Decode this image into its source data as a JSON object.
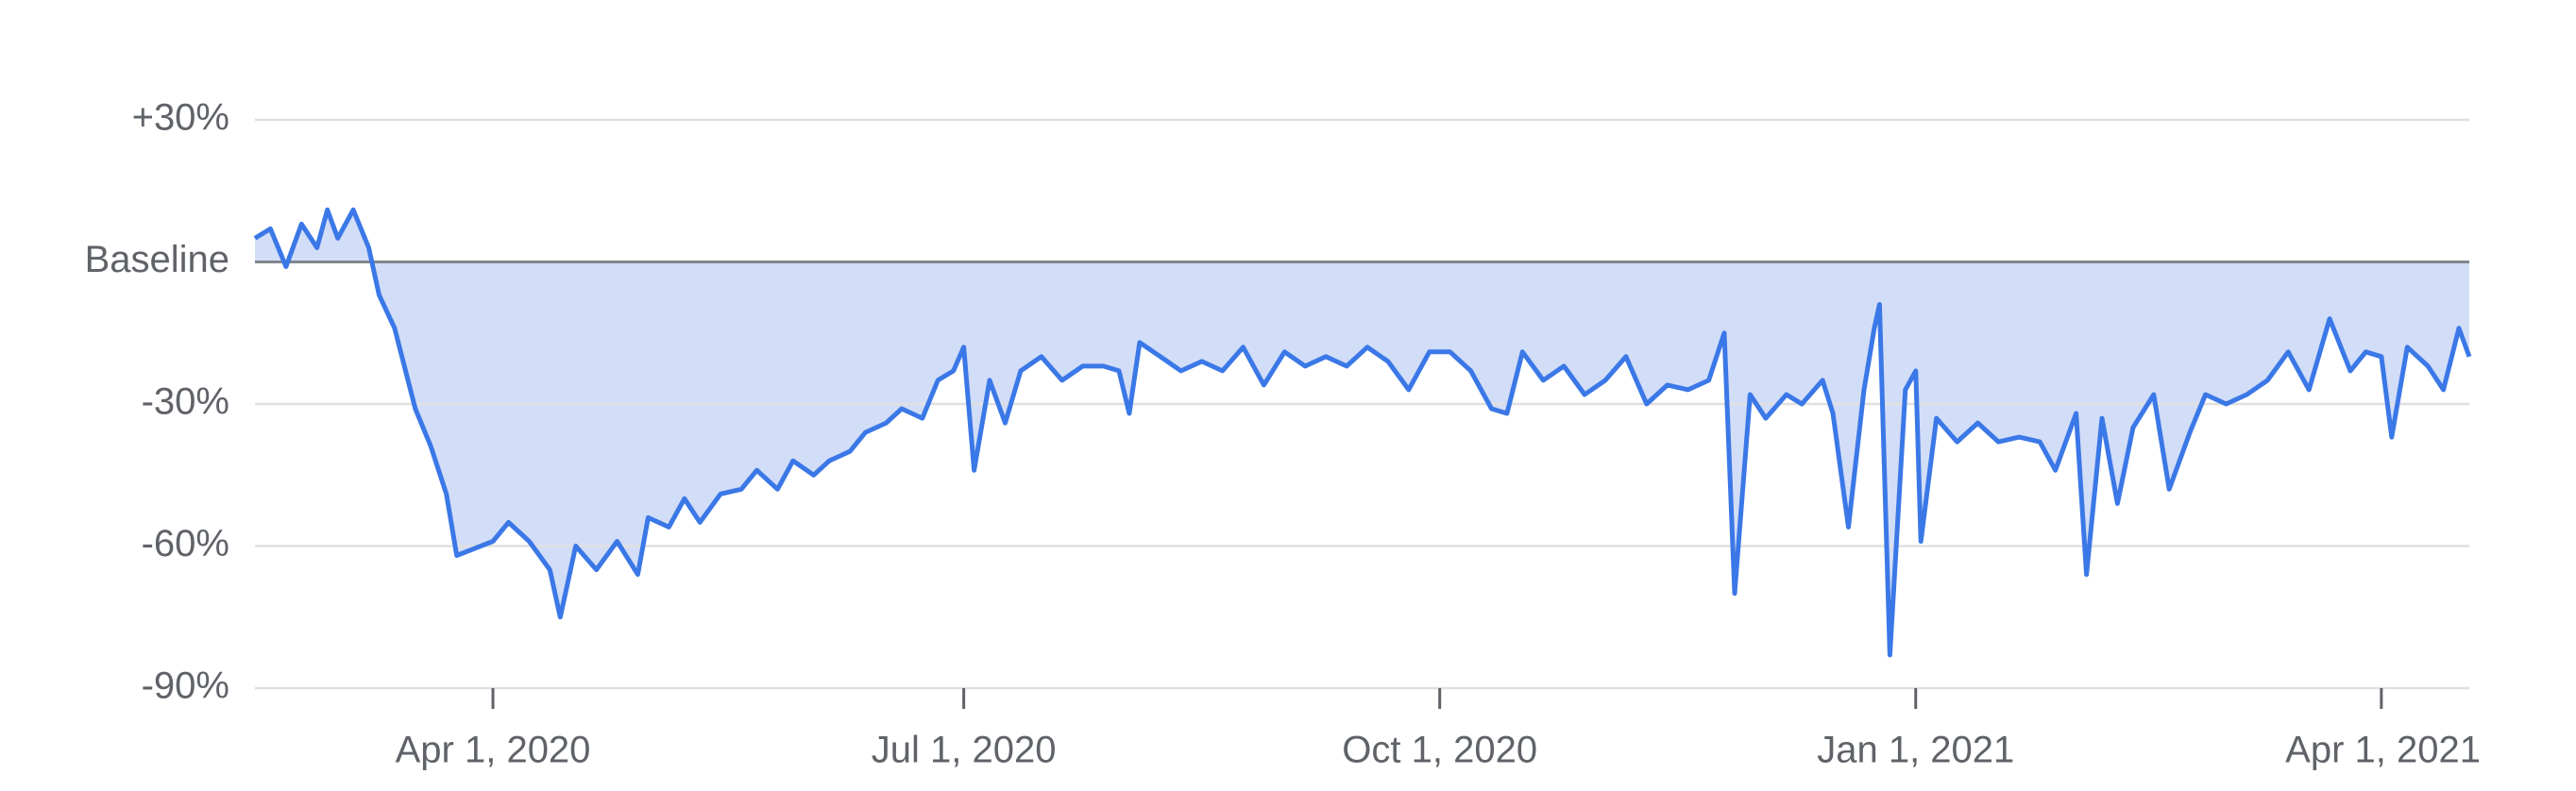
{
  "chart_data": {
    "type": "area",
    "x": [
      "2020-02-15",
      "2020-02-18",
      "2020-02-21",
      "2020-02-24",
      "2020-02-27",
      "2020-02-29",
      "2020-03-02",
      "2020-03-05",
      "2020-03-08",
      "2020-03-10",
      "2020-03-13",
      "2020-03-17",
      "2020-03-20",
      "2020-03-23",
      "2020-03-25",
      "2020-04-01",
      "2020-04-04",
      "2020-04-08",
      "2020-04-12",
      "2020-04-14",
      "2020-04-17",
      "2020-04-21",
      "2020-04-25",
      "2020-04-29",
      "2020-05-01",
      "2020-05-05",
      "2020-05-08",
      "2020-05-11",
      "2020-05-15",
      "2020-05-19",
      "2020-05-22",
      "2020-05-26",
      "2020-05-29",
      "2020-06-02",
      "2020-06-05",
      "2020-06-09",
      "2020-06-12",
      "2020-06-16",
      "2020-06-19",
      "2020-06-23",
      "2020-06-26",
      "2020-06-29",
      "2020-07-01",
      "2020-07-03",
      "2020-07-06",
      "2020-07-09",
      "2020-07-12",
      "2020-07-16",
      "2020-07-20",
      "2020-07-24",
      "2020-07-28",
      "2020-07-31",
      "2020-08-02",
      "2020-08-04",
      "2020-08-08",
      "2020-08-12",
      "2020-08-16",
      "2020-08-20",
      "2020-08-24",
      "2020-08-28",
      "2020-09-01",
      "2020-09-05",
      "2020-09-09",
      "2020-09-13",
      "2020-09-17",
      "2020-09-21",
      "2020-09-25",
      "2020-09-29",
      "2020-10-03",
      "2020-10-07",
      "2020-10-11",
      "2020-10-14",
      "2020-10-17",
      "2020-10-21",
      "2020-10-25",
      "2020-10-29",
      "2020-11-02",
      "2020-11-06",
      "2020-11-10",
      "2020-11-14",
      "2020-11-18",
      "2020-11-22",
      "2020-11-25",
      "2020-11-27",
      "2020-11-30",
      "2020-12-03",
      "2020-12-07",
      "2020-12-10",
      "2020-12-14",
      "2020-12-16",
      "2020-12-19",
      "2020-12-22",
      "2020-12-24",
      "2020-12-25",
      "2020-12-27",
      "2020-12-30",
      "2021-01-01",
      "2021-01-02",
      "2021-01-05",
      "2021-01-09",
      "2021-01-13",
      "2021-01-17",
      "2021-01-21",
      "2021-01-25",
      "2021-01-28",
      "2021-02-01",
      "2021-02-03",
      "2021-02-06",
      "2021-02-09",
      "2021-02-12",
      "2021-02-16",
      "2021-02-19",
      "2021-02-23",
      "2021-02-26",
      "2021-03-02",
      "2021-03-06",
      "2021-03-10",
      "2021-03-14",
      "2021-03-18",
      "2021-03-22",
      "2021-03-26",
      "2021-03-29",
      "2021-04-01",
      "2021-04-03",
      "2021-04-06",
      "2021-04-10",
      "2021-04-13",
      "2021-04-16",
      "2021-04-18"
    ],
    "values": [
      5,
      7,
      -1,
      8,
      3,
      11,
      5,
      11,
      3,
      -7,
      -14,
      -31,
      -39,
      -49,
      -62,
      -59,
      -55,
      -59,
      -65,
      -75,
      -60,
      -65,
      -59,
      -66,
      -54,
      -56,
      -50,
      -55,
      -49,
      -48,
      -44,
      -48,
      -42,
      -45,
      -42,
      -40,
      -36,
      -34,
      -31,
      -33,
      -25,
      -23,
      -18,
      -44,
      -25,
      -34,
      -23,
      -20,
      -25,
      -22,
      -22,
      -23,
      -32,
      -17,
      -20,
      -23,
      -21,
      -23,
      -18,
      -26,
      -19,
      -22,
      -20,
      -22,
      -18,
      -21,
      -27,
      -19,
      -19,
      -23,
      -31,
      -32,
      -19,
      -25,
      -22,
      -28,
      -25,
      -20,
      -30,
      -26,
      -27,
      -25,
      -15,
      -70,
      -28,
      -33,
      -28,
      -30,
      -25,
      -32,
      -56,
      -27,
      -14,
      -9,
      -83,
      -27,
      -23,
      -59,
      -33,
      -38,
      -34,
      -38,
      -37,
      -38,
      -44,
      -32,
      -66,
      -33,
      -51,
      -35,
      -28,
      -48,
      -36,
      -28,
      -30,
      -28,
      -25,
      -19,
      -27,
      -12,
      -23,
      -19,
      -20,
      -37,
      -18,
      -22,
      -27,
      -14,
      -20
    ],
    "color": "#3b78e7",
    "fill_color": "#d2ddf7",
    "xlim": [
      "2020-02-15",
      "2021-04-18"
    ],
    "xticks": [
      {
        "value": "2020-04-01",
        "label": "Apr 1, 2020"
      },
      {
        "value": "2020-07-01",
        "label": "Jul 1, 2020"
      },
      {
        "value": "2020-10-01",
        "label": "Oct 1, 2020"
      },
      {
        "value": "2021-01-01",
        "label": "Jan 1, 2021"
      },
      {
        "value": "2021-04-01",
        "label": "Apr 1, 2021"
      }
    ],
    "ylim": [
      -90,
      30
    ],
    "yticks": [
      {
        "value": 30,
        "label": "+30%"
      },
      {
        "value": 0,
        "label": "Baseline"
      },
      {
        "value": -30,
        "label": "-30%"
      },
      {
        "value": -60,
        "label": "-60%"
      },
      {
        "value": -90,
        "label": "-90%"
      }
    ],
    "grid": true
  }
}
